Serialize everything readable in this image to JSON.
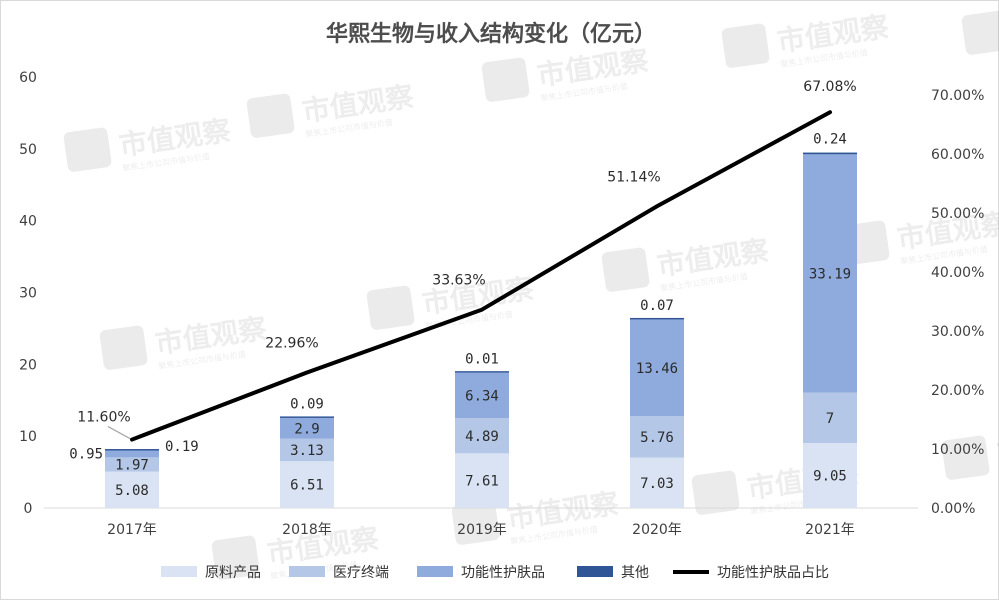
{
  "chart_data": {
    "type": "bar",
    "stacked": true,
    "title": "华熙生物与收入结构变化（亿元）",
    "categories": [
      "2017年",
      "2018年",
      "2019年",
      "2020年",
      "2021年"
    ],
    "series": [
      {
        "name": "原料产品",
        "values": [
          5.08,
          6.51,
          7.61,
          7.03,
          9.05
        ],
        "labels": [
          "5.08",
          "6.51",
          "7.61",
          "7.03",
          "9.05"
        ],
        "color": "#dae3f3"
      },
      {
        "name": "医疗终端",
        "values": [
          1.97,
          3.13,
          4.89,
          5.76,
          7
        ],
        "labels": [
          "1.97",
          "3.13",
          "4.89",
          "5.76",
          "7"
        ],
        "color": "#b4c7e7"
      },
      {
        "name": "功能性护肤品",
        "values": [
          0.95,
          2.9,
          6.34,
          13.46,
          33.19
        ],
        "labels": [
          "0.95",
          "2.9",
          "6.34",
          "13.46",
          "33.19"
        ],
        "color": "#8faadc"
      },
      {
        "name": "其他",
        "values": [
          0.19,
          0.09,
          0.01,
          0.07,
          0.24
        ],
        "labels": [
          "0.19",
          "0.09",
          "0.01",
          "0.07",
          "0.24"
        ],
        "color": "#2f5597"
      }
    ],
    "line_series": {
      "name": "功能性护肤品占比",
      "axis": "secondary",
      "values": [
        11.6,
        22.96,
        33.63,
        51.14,
        67.08
      ],
      "labels": [
        "11.60%",
        "22.96%",
        "33.63%",
        "51.14%",
        "67.08%"
      ],
      "color": "#000000"
    },
    "ylim": [
      0,
      60
    ],
    "yticks": [
      "0",
      "10",
      "20",
      "30",
      "40",
      "50",
      "60"
    ],
    "y2lim": [
      0,
      70
    ],
    "y2ticks": [
      "0.00%",
      "10.00%",
      "20.00%",
      "30.00%",
      "40.00%",
      "50.00%",
      "60.00%",
      "70.00%"
    ],
    "legend_position": "bottom",
    "grid": false
  },
  "watermark": {
    "text": "市值观察",
    "subtext": "聚焦上市公司市值与价值"
  }
}
